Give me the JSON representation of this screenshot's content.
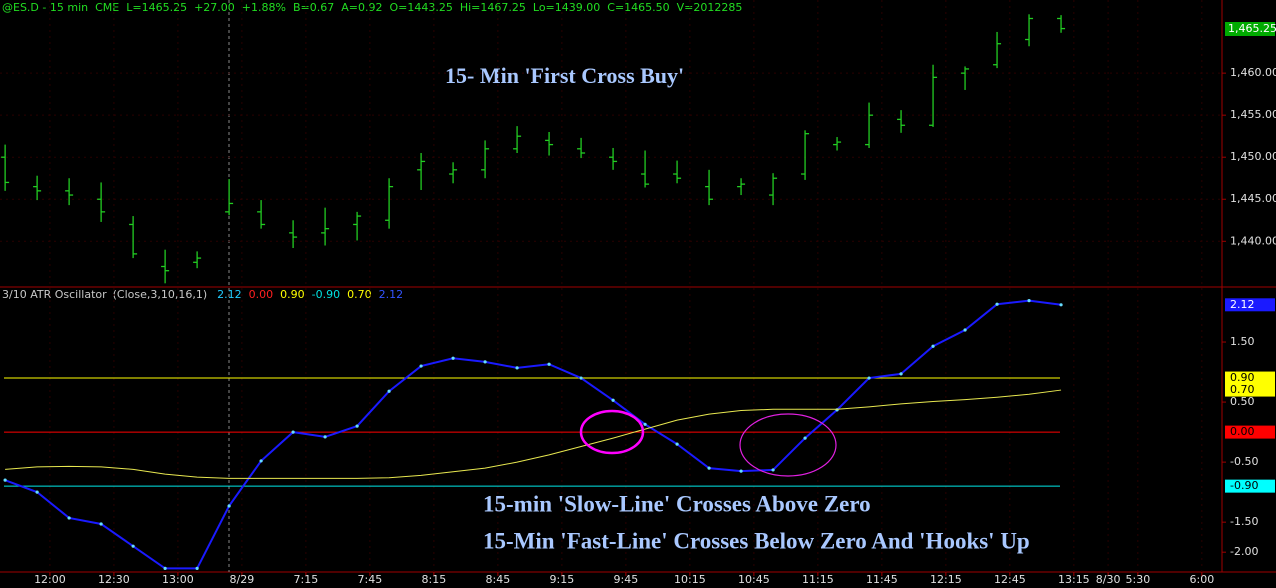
{
  "header": {
    "quote": [
      "@ES.D - 15 min",
      "CME",
      "L=1465.25",
      "+27.00",
      "+1.88%",
      "B=0.67",
      "A=0.92",
      "O=1443.25",
      "Hi=1467.25",
      "Lo=1439.00",
      "C=1465.50",
      "V=2012285"
    ],
    "color": "#22dd22"
  },
  "chart_data": [
    {
      "type": "ohlc",
      "annotation": "15- Min 'First Cross Buy'",
      "color": "#22cc22",
      "x": [
        0,
        1,
        2,
        3,
        4,
        5,
        6,
        7,
        8,
        9,
        10,
        11,
        12,
        13,
        14,
        15,
        16,
        17,
        18,
        19,
        20,
        21,
        22,
        23,
        24,
        25,
        26,
        27,
        28,
        29,
        30,
        31,
        32,
        33
      ],
      "open": [
        1450,
        1446.5,
        1446,
        1445,
        1442,
        1437,
        1437.5,
        1443.5,
        1443.5,
        1441,
        1441,
        1442,
        1442.5,
        1448.5,
        1448,
        1448.5,
        1451,
        1452,
        1451,
        1450,
        1448,
        1448,
        1446.5,
        1446.5,
        1445.5,
        1448,
        1451.5,
        1451.5,
        1454.5,
        1453.8,
        1460,
        1461,
        1464,
        1466.5
      ],
      "high": [
        1451.5,
        1447.8,
        1447.5,
        1447,
        1443,
        1439,
        1438.8,
        1447.4,
        1444.9,
        1442.5,
        1444,
        1443.5,
        1447.5,
        1450.5,
        1449.4,
        1452,
        1453.7,
        1453,
        1452.3,
        1451.1,
        1450.8,
        1449.6,
        1448.5,
        1447.5,
        1448.1,
        1453.2,
        1452.4,
        1456.5,
        1455.6,
        1461,
        1460.8,
        1464.9,
        1467,
        1466.9
      ],
      "low": [
        1446,
        1444.9,
        1444.3,
        1442.3,
        1438,
        1435,
        1436.8,
        1443.1,
        1441.5,
        1439.2,
        1439.5,
        1440.1,
        1441.5,
        1446.1,
        1446.9,
        1447.5,
        1450.5,
        1450.2,
        1449.9,
        1448.5,
        1446.4,
        1446.9,
        1444.3,
        1445.5,
        1444.3,
        1447.3,
        1450.8,
        1451.1,
        1452.9,
        1453.6,
        1458,
        1460.6,
        1463.2,
        1464.8
      ],
      "close": [
        1447,
        1446,
        1445.5,
        1443.5,
        1438.5,
        1436.5,
        1438,
        1444.5,
        1442,
        1440.5,
        1441.5,
        1443,
        1446.5,
        1449.5,
        1448.5,
        1451,
        1452.5,
        1451.5,
        1450.5,
        1449.5,
        1446.8,
        1447.5,
        1445,
        1446.8,
        1447.5,
        1452.8,
        1451.8,
        1455,
        1453.8,
        1459.5,
        1460.5,
        1463.5,
        1466.5,
        1465.3
      ],
      "xlim": [
        -0.16,
        38.03
      ],
      "ylim": [
        1434.8,
        1468.7
      ],
      "yticks": [
        {
          "value": 1440,
          "label": "1,440.00"
        },
        {
          "value": 1445,
          "label": "1,445.00"
        },
        {
          "value": 1450,
          "label": "1,450.00"
        },
        {
          "value": 1455,
          "label": "1,455.00"
        },
        {
          "value": 1460,
          "label": "1,460.00"
        }
      ],
      "last": {
        "value": 1465.25,
        "label": "1,465.25"
      }
    },
    {
      "type": "line",
      "title": "3/10 ATR Oscillator",
      "params": "(Close,3,10,16,1)",
      "readouts": [
        {
          "label": "2.12",
          "color": "#22ccff"
        },
        {
          "label": "0.00",
          "color": "#ff2020"
        },
        {
          "label": "0.90",
          "color": "#ffff00"
        },
        {
          "label": "-0.90",
          "color": "#00e0e0"
        },
        {
          "label": "0.70",
          "color": "#ffff00"
        },
        {
          "label": "2.12",
          "color": "#3355ff"
        }
      ],
      "annotations": [
        "15-min 'Slow-Line' Crosses Above Zero",
        "15-Min 'Fast-Line' Crosses Below Zero And 'Hooks' Up"
      ],
      "x": [
        0,
        1,
        2,
        3,
        4,
        5,
        6,
        7,
        8,
        9,
        10,
        11,
        12,
        13,
        14,
        15,
        16,
        17,
        18,
        19,
        20,
        21,
        22,
        23,
        24,
        25,
        26,
        27,
        28,
        29,
        30,
        31,
        32,
        33
      ],
      "series": [
        {
          "name": "Fast",
          "color": "#1a1aff",
          "values": [
            -0.8,
            -1.0,
            -1.43,
            -1.53,
            -1.9,
            -2.27,
            -2.27,
            -1.23,
            -0.48,
            0.0,
            -0.08,
            0.1,
            0.68,
            1.1,
            1.23,
            1.17,
            1.07,
            1.13,
            0.9,
            0.53,
            0.13,
            -0.2,
            -0.6,
            -0.65,
            -0.63,
            -0.1,
            0.37,
            0.9,
            0.97,
            1.43,
            1.7,
            2.13,
            2.19,
            2.12
          ]
        },
        {
          "name": "Slow",
          "color": "#e8e850",
          "values": [
            -0.62,
            -0.58,
            -0.57,
            -0.58,
            -0.62,
            -0.7,
            -0.75,
            -0.77,
            -0.77,
            -0.77,
            -0.77,
            -0.77,
            -0.76,
            -0.72,
            -0.66,
            -0.6,
            -0.5,
            -0.38,
            -0.24,
            -0.1,
            0.05,
            0.2,
            0.3,
            0.36,
            0.38,
            0.38,
            0.38,
            0.42,
            0.47,
            0.51,
            0.54,
            0.58,
            0.63,
            0.7
          ]
        }
      ],
      "levels": [
        {
          "value": 0.9,
          "color": "#ffff00"
        },
        {
          "value": 0,
          "color": "#ff0000"
        },
        {
          "value": -0.9,
          "color": "#00e8e8"
        }
      ],
      "markers": [
        {
          "value": 2.12,
          "label": "2.12",
          "color": "#1a1aff",
          "text": "#ffffff"
        },
        {
          "value": 0.9,
          "label": "0.90",
          "color": "#ffff00",
          "text": "#000000"
        },
        {
          "value": 0.7,
          "label": "0.70",
          "color": "#ffff00",
          "text": "#000000"
        },
        {
          "value": 0,
          "label": "0.00",
          "color": "#ff0000",
          "text": "#000000"
        },
        {
          "value": -0.9,
          "label": "-0.90",
          "color": "#00ffff",
          "text": "#000000"
        }
      ],
      "xlim": [
        -0.16,
        38.03
      ],
      "ylim": [
        -2.33,
        2.2
      ],
      "yticks": [
        {
          "value": 1.5,
          "label": "1.50"
        },
        {
          "value": 0.5,
          "label": "0.50"
        },
        {
          "value": -0.5,
          "label": "-0.50"
        },
        {
          "value": -1.5,
          "label": "-1.50"
        },
        {
          "value": -2,
          "label": "-2.00"
        }
      ],
      "xticks": [
        {
          "value": 1.4,
          "label": "12:00"
        },
        {
          "value": 3.4,
          "label": "12:30"
        },
        {
          "value": 5.4,
          "label": "13:00"
        },
        {
          "value": 7.4,
          "label": "8/29"
        },
        {
          "value": 9.4,
          "label": "7:15"
        },
        {
          "value": 11.4,
          "label": "7:45"
        },
        {
          "value": 13.4,
          "label": "8:15"
        },
        {
          "value": 15.4,
          "label": "8:45"
        },
        {
          "value": 17.4,
          "label": "9:15"
        },
        {
          "value": 19.4,
          "label": "9:45"
        },
        {
          "value": 21.4,
          "label": "10:15"
        },
        {
          "value": 23.4,
          "label": "10:45"
        },
        {
          "value": 25.4,
          "label": "11:15"
        },
        {
          "value": 27.4,
          "label": "11:45"
        },
        {
          "value": 29.4,
          "label": "12:15"
        },
        {
          "value": 31.4,
          "label": "12:45"
        },
        {
          "value": 33.4,
          "label": "13:15"
        },
        {
          "value": 34.47,
          "label": "8/30"
        },
        {
          "value": 35.4,
          "label": "5:30"
        },
        {
          "value": 37.4,
          "label": "6:00"
        }
      ]
    }
  ]
}
